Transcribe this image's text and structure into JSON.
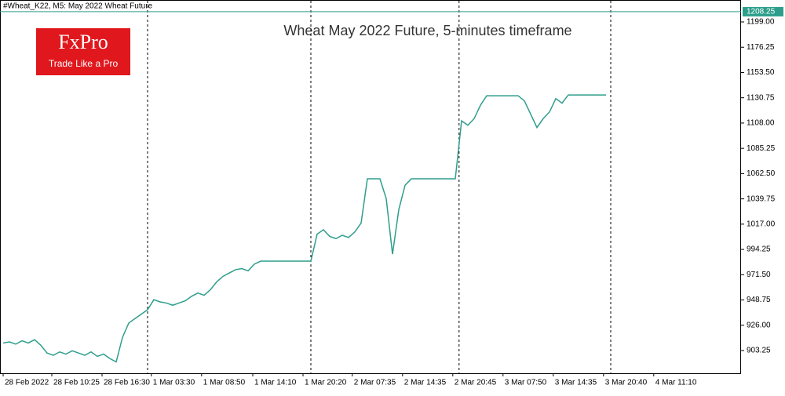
{
  "chart_data": {
    "type": "line",
    "header": "#Wheat_K22, M5:  May 2022 Wheat Future",
    "title": "Wheat May 2022 Future, 5-minutes timeframe",
    "logo": {
      "name": "FxPro",
      "tagline": "Trade Like a Pro"
    },
    "color": "#2e9e8c",
    "x": [
      0,
      1,
      2,
      3,
      4,
      5,
      6,
      7,
      8,
      9,
      10,
      11,
      12,
      13,
      14,
      15,
      16,
      17,
      18,
      19,
      20,
      21,
      22,
      23,
      24,
      25,
      26,
      27,
      28,
      29,
      30,
      31,
      32,
      33,
      34,
      35,
      36,
      37,
      38,
      39,
      40,
      41,
      42,
      43,
      44,
      45,
      46,
      47,
      48,
      49,
      50,
      51,
      52,
      53,
      54,
      55,
      56,
      57,
      58,
      59,
      60,
      61,
      62,
      63,
      64,
      65,
      66,
      67,
      68,
      69,
      70,
      71,
      72,
      73,
      74,
      75,
      76,
      77,
      78,
      79,
      80,
      81,
      82,
      83,
      84,
      85,
      86,
      87,
      88,
      89,
      90,
      91,
      92,
      93,
      94,
      95,
      96
    ],
    "values": [
      910,
      911,
      909,
      912,
      910,
      913,
      908,
      901,
      899,
      902,
      900,
      903,
      901,
      899,
      902,
      898,
      900,
      896,
      893,
      915,
      928,
      932,
      936,
      940,
      949,
      947,
      946,
      944,
      946,
      948,
      952,
      955,
      953,
      958,
      965,
      970,
      973,
      976,
      977,
      975,
      981,
      983.7,
      983.7,
      983.7,
      983.7,
      983.7,
      983.7,
      983.7,
      983.7,
      983.7,
      1008,
      1012,
      1006,
      1004,
      1007,
      1005,
      1010,
      1018,
      1057.8,
      1057.8,
      1057.8,
      1040,
      990,
      1030,
      1052,
      1057.8,
      1057.8,
      1057.8,
      1057.8,
      1057.8,
      1057.8,
      1057.8,
      1057.8,
      1110,
      1106,
      1112,
      1124,
      1132.6,
      1132.6,
      1132.6,
      1132.6,
      1132.6,
      1132.6,
      1128,
      1116,
      1104,
      1112,
      1118,
      1130,
      1126,
      1133.3,
      1133.3,
      1133.3,
      1133.3,
      1133.3,
      1133.3,
      1133.3
    ],
    "xlim": [
      -0.5,
      117.5
    ],
    "xticks": [
      {
        "value": 0,
        "label": "28 Feb 2022"
      },
      {
        "value": 7.75,
        "label": "28 Feb 10:25"
      },
      {
        "value": 15.75,
        "label": "28 Feb 16:30"
      },
      {
        "value": 23.6,
        "label": "1 Mar 03:30"
      },
      {
        "value": 31.6,
        "label": "1 Mar 08:50"
      },
      {
        "value": 39.75,
        "label": "1 Mar 14:10"
      },
      {
        "value": 47.75,
        "label": "1 Mar 20:20"
      },
      {
        "value": 55.6,
        "label": "2 Mar 07:35"
      },
      {
        "value": 63.6,
        "label": "2 Mar 14:35"
      },
      {
        "value": 71.6,
        "label": "2 Mar 20:45"
      },
      {
        "value": 79.6,
        "label": "3 Mar 07:50"
      },
      {
        "value": 87.6,
        "label": "3 Mar 14:35"
      },
      {
        "value": 95.6,
        "label": "3 Mar 20:40"
      },
      {
        "value": 103.6,
        "label": "4 Mar 11:10"
      }
    ],
    "day_separators": [
      23,
      49,
      72.6,
      96.75
    ],
    "ylim": [
      882.78,
      1213.12
    ],
    "yticks": [
      903.25,
      {
        "value": 926,
        "label": "926.00"
      },
      948.75,
      {
        "value": 971.5,
        "label": "971.50"
      },
      994.25,
      {
        "value": 1017,
        "label": "1017.00"
      },
      1039.75,
      {
        "value": 1062.5,
        "label": "1062.50"
      },
      1085.25,
      {
        "value": 1108,
        "label": "1108.00"
      },
      1130.75,
      {
        "value": 1153.5,
        "label": "1153.50"
      },
      1176.25,
      {
        "value": 1199,
        "label": "1199.00"
      }
    ],
    "last_price": 1208.25
  }
}
